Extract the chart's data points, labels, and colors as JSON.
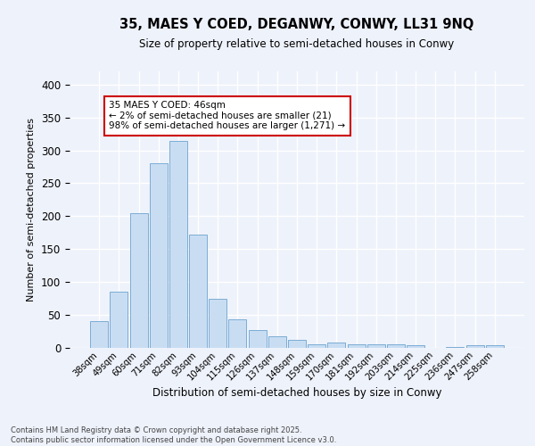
{
  "title1": "35, MAES Y COED, DEGANWY, CONWY, LL31 9NQ",
  "title2": "Size of property relative to semi-detached houses in Conwy",
  "xlabel": "Distribution of semi-detached houses by size in Conwy",
  "ylabel": "Number of semi-detached properties",
  "categories": [
    "38sqm",
    "49sqm",
    "60sqm",
    "71sqm",
    "82sqm",
    "93sqm",
    "104sqm",
    "115sqm",
    "126sqm",
    "137sqm",
    "148sqm",
    "159sqm",
    "170sqm",
    "181sqm",
    "192sqm",
    "203sqm",
    "214sqm",
    "225sqm",
    "236sqm",
    "247sqm",
    "258sqm"
  ],
  "values": [
    40,
    86,
    204,
    280,
    315,
    172,
    74,
    43,
    27,
    17,
    12,
    6,
    8,
    5,
    5,
    5,
    4,
    0,
    1,
    4,
    4
  ],
  "bar_color": "#c9ddf2",
  "bar_edge_color": "#7aadd4",
  "annotation_text": "35 MAES Y COED: 46sqm\n← 2% of semi-detached houses are smaller (21)\n98% of semi-detached houses are larger (1,271) →",
  "annotation_box_color": "#ffffff",
  "annotation_box_edge_color": "#cc0000",
  "footer_text": "Contains HM Land Registry data © Crown copyright and database right 2025.\nContains public sector information licensed under the Open Government Licence v3.0.",
  "bg_color": "#eef2fb",
  "grid_color": "#ffffff",
  "ylim": [
    0,
    420
  ]
}
